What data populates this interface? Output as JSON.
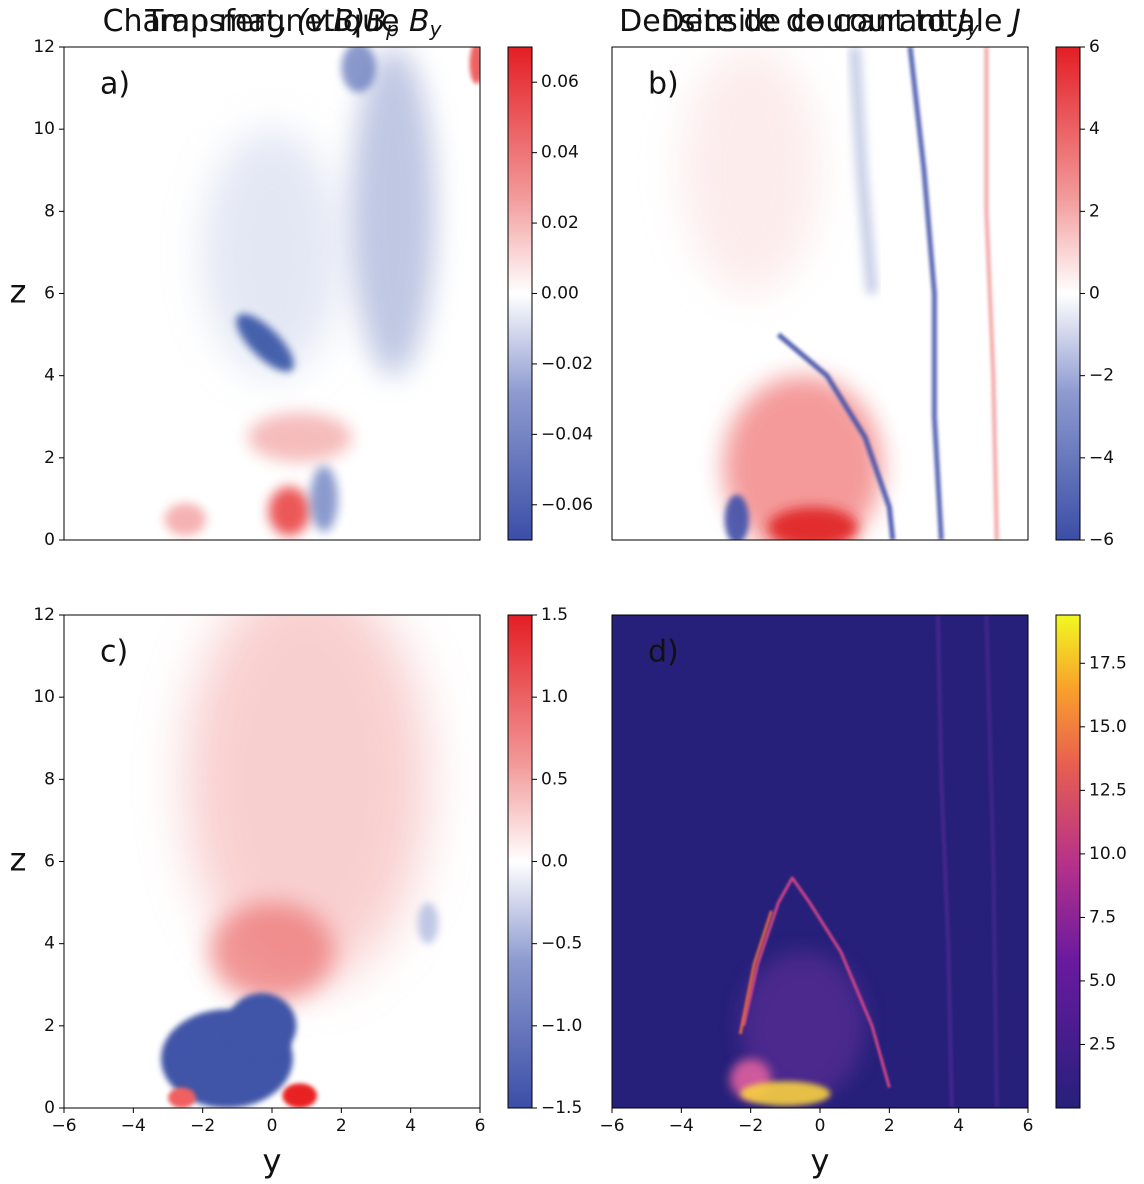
{
  "chart_data": [
    {
      "type": "heatmap",
      "title": "Transfert, ",
      "title_math": "(v.B)B",
      "title_sub": "p",
      "panel_label": "a)",
      "xlim": [
        -6,
        6
      ],
      "ylim": [
        0,
        12
      ],
      "yticks": [
        0,
        2,
        4,
        6,
        8,
        10,
        12
      ],
      "ylabel": "z",
      "colormap": "bwr",
      "clim": [
        -0.07,
        0.07
      ],
      "cticks": [
        {
          "value": -0.06,
          "label": "−0.06"
        },
        {
          "value": -0.04,
          "label": "−0.04"
        },
        {
          "value": -0.02,
          "label": "−0.02"
        },
        {
          "value": 0,
          "label": "0.00"
        },
        0.02,
        0.04,
        0.06
      ]
    },
    {
      "type": "heatmap",
      "title": "Densite de courant ",
      "title_math": "J",
      "title_sub": "y",
      "panel_label": "b)",
      "xlim": [
        -6,
        6
      ],
      "ylim": [
        0,
        12
      ],
      "colormap": "bwr",
      "clim": [
        -6,
        6
      ],
      "cticks": [
        {
          "value": -6,
          "label": "−6"
        },
        {
          "value": -4,
          "label": "−4"
        },
        {
          "value": -2,
          "label": "−2"
        },
        0,
        2,
        4,
        6
      ]
    },
    {
      "type": "heatmap",
      "title": "Champ magnetique ",
      "title_math": "B",
      "title_sub": "y",
      "panel_label": "c)",
      "xlim": [
        -6,
        6
      ],
      "ylim": [
        0,
        12
      ],
      "yticks": [
        0,
        2,
        4,
        6,
        8,
        10,
        12
      ],
      "ylabel": "z",
      "xticks": [
        {
          "value": -6,
          "label": "−6"
        },
        {
          "value": -4,
          "label": "−4"
        },
        {
          "value": -2,
          "label": "−2"
        },
        0,
        2,
        4,
        6
      ],
      "xlabel": "y",
      "colormap": "bwr",
      "clim": [
        -1.5,
        1.5
      ],
      "cticks": [
        {
          "value": -1.5,
          "label": "−1.5"
        },
        {
          "value": -1,
          "label": "−1.0"
        },
        {
          "value": -0.5,
          "label": "−0.5"
        },
        {
          "value": 0,
          "label": "0.0"
        },
        0.5,
        {
          "value": 1,
          "label": "1.0"
        },
        1.5
      ]
    },
    {
      "type": "heatmap",
      "title": "Densite de courant totale ",
      "title_math": "J",
      "panel_label": "d)",
      "xlim": [
        -6,
        6
      ],
      "ylim": [
        0,
        12
      ],
      "xticks": [
        {
          "value": -6,
          "label": "−6"
        },
        {
          "value": -4,
          "label": "−4"
        },
        {
          "value": -2,
          "label": "−2"
        },
        0,
        2,
        4,
        6
      ],
      "xlabel": "y",
      "colormap": "plasma",
      "clim": [
        0,
        19.4
      ],
      "cticks": [
        2.5,
        {
          "value": 5,
          "label": "5.0"
        },
        7.5,
        {
          "value": 10,
          "label": "10.0"
        },
        12.5,
        {
          "value": 15,
          "label": "15.0"
        },
        17.5
      ]
    }
  ]
}
